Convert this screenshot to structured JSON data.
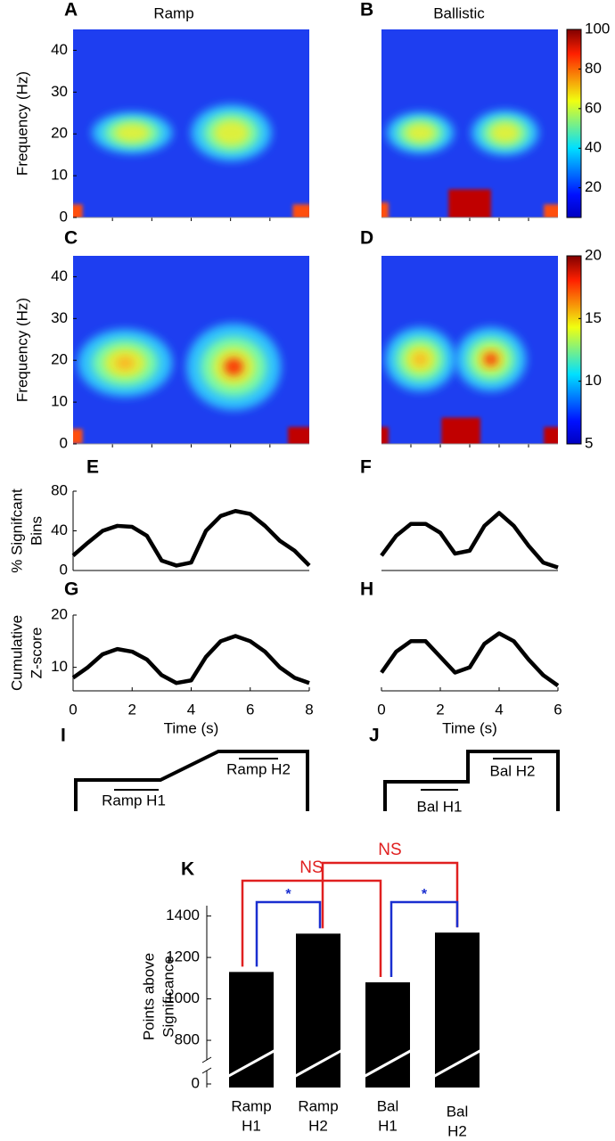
{
  "chart_data": [
    {
      "type": "heatmap",
      "panel": "A",
      "title": "Ramp",
      "ylabel": "Frequency (Hz)",
      "ylim": [
        0,
        45
      ],
      "yticks": [
        0,
        10,
        20,
        30,
        40
      ]
    },
    {
      "type": "heatmap",
      "panel": "B",
      "title": "Ballistic",
      "colorbar": {
        "lim": [
          5,
          100
        ],
        "ticks": [
          20,
          40,
          60,
          80,
          100
        ]
      }
    },
    {
      "type": "heatmap",
      "panel": "C",
      "ylabel": "Frequency (Hz)",
      "ylim": [
        0,
        45
      ],
      "yticks": [
        0,
        10,
        20,
        30,
        40
      ]
    },
    {
      "type": "heatmap",
      "panel": "D",
      "colorbar": {
        "lim": [
          5,
          20
        ],
        "ticks": [
          5,
          10,
          15,
          20
        ]
      }
    },
    {
      "type": "line",
      "panel": "E",
      "ylabel": [
        "% Signifcant",
        "Bins"
      ],
      "ylim": [
        0,
        80
      ],
      "yticks": [
        0,
        40,
        80
      ],
      "xlim": [
        0,
        8
      ],
      "color": "#000000",
      "x": [
        0,
        0.5,
        1,
        1.5,
        2,
        2.5,
        3,
        3.5,
        4,
        4.5,
        5,
        5.5,
        6,
        6.5,
        7,
        7.5,
        8
      ],
      "values": [
        15,
        28,
        40,
        45,
        44,
        35,
        10,
        5,
        8,
        40,
        55,
        60,
        57,
        45,
        30,
        20,
        5
      ]
    },
    {
      "type": "line",
      "panel": "F",
      "ylim": [
        0,
        80
      ],
      "xlim": [
        0,
        6
      ],
      "color": "#000000",
      "x": [
        0,
        0.5,
        1,
        1.5,
        2,
        2.5,
        3,
        3.5,
        4,
        4.5,
        5,
        5.5,
        6
      ],
      "values": [
        15,
        35,
        47,
        47,
        38,
        17,
        20,
        45,
        58,
        45,
        25,
        8,
        3
      ]
    },
    {
      "type": "line",
      "panel": "G",
      "ylabel": [
        "Cumulative",
        "Z-score"
      ],
      "xlabel": "Time (s)",
      "ylim": [
        5.5,
        20
      ],
      "yticks": [
        10,
        20
      ],
      "xlim": [
        0,
        8
      ],
      "xticks": [
        0,
        2,
        4,
        6,
        8
      ],
      "color": "#000000",
      "x": [
        0,
        0.5,
        1,
        1.5,
        2,
        2.5,
        3,
        3.5,
        4,
        4.5,
        5,
        5.5,
        6,
        6.5,
        7,
        7.5,
        8
      ],
      "values": [
        8,
        10,
        12.5,
        13.5,
        13,
        11.5,
        8.5,
        7,
        7.5,
        12,
        15,
        16,
        15,
        13,
        10,
        8,
        7
      ]
    },
    {
      "type": "line",
      "panel": "H",
      "xlabel": "Time (s)",
      "ylim": [
        5.5,
        20
      ],
      "xlim": [
        0,
        6
      ],
      "xticks": [
        0,
        2,
        4,
        6
      ],
      "color": "#000000",
      "x": [
        0,
        0.5,
        1,
        1.5,
        2,
        2.5,
        3,
        3.5,
        4,
        4.5,
        5,
        5.5,
        6
      ],
      "values": [
        9,
        13,
        15,
        15,
        12,
        9,
        10,
        14.5,
        16.5,
        15,
        11.5,
        8.5,
        6.5
      ]
    },
    {
      "type": "schedule",
      "panel": "I",
      "labels": [
        "Ramp H1",
        "Ramp H2"
      ]
    },
    {
      "type": "schedule",
      "panel": "J",
      "labels": [
        "Bal H1",
        "Bal H2"
      ]
    },
    {
      "type": "bar",
      "panel": "K",
      "ylabel": [
        "Points above",
        "Significance"
      ],
      "ylim": [
        740,
        1450
      ],
      "yticks": [
        0,
        800,
        1000,
        1200,
        1400
      ],
      "axis_break": true,
      "color": "#000000",
      "categories": [
        [
          "Ramp",
          "H1"
        ],
        [
          "Ramp",
          "H2"
        ],
        [
          "Bal",
          "H1"
        ],
        [
          "Bal",
          "H2"
        ]
      ],
      "values": [
        1130,
        1315,
        1080,
        1320
      ],
      "comparisons": [
        {
          "label": "NS",
          "color": "#e02020",
          "pair": [
            0,
            2
          ]
        },
        {
          "label": "NS",
          "color": "#e02020",
          "pair": [
            1,
            3
          ]
        },
        {
          "label": "*",
          "color": "#1a2fd0",
          "pair": [
            0,
            1
          ]
        },
        {
          "label": "*",
          "color": "#1a2fd0",
          "pair": [
            2,
            3
          ]
        }
      ]
    }
  ]
}
